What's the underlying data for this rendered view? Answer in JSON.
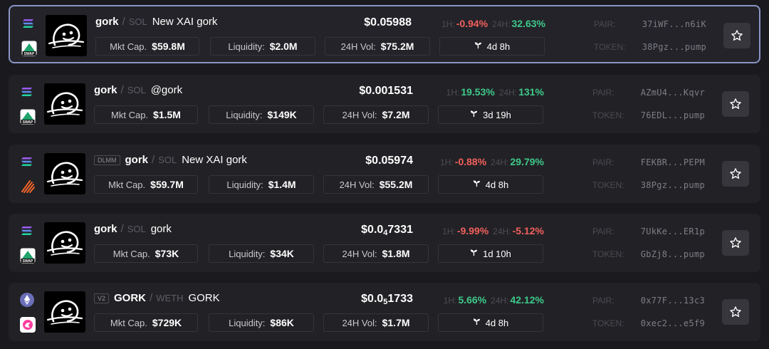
{
  "rows": [
    {
      "symbol": "gork",
      "base": "SOL",
      "name": "New XAI gork",
      "tag": "",
      "chain": "solana",
      "dex": "raydium-swap",
      "dex_label": "SWAP",
      "price": "$0.05988",
      "price_zero_count": "",
      "price_sig": "",
      "h1": "-0.94%",
      "h1_dir": "neg",
      "h24": "32.63%",
      "h24_dir": "pos",
      "mkt_cap": "$59.8M",
      "liquidity": "$2.0M",
      "vol": "$75.2M",
      "age": "4d 8h",
      "pair": "37iWF...n6iK",
      "token": "38Pgz...pump",
      "selected": true
    },
    {
      "symbol": "gork",
      "base": "SOL",
      "name": "@gork",
      "tag": "",
      "chain": "solana",
      "dex": "raydium-swap",
      "dex_label": "SWAP",
      "price": "$0.001531",
      "price_zero_count": "",
      "price_sig": "",
      "h1": "19.53%",
      "h1_dir": "pos",
      "h24": "131%",
      "h24_dir": "pos",
      "mkt_cap": "$1.5M",
      "liquidity": "$149K",
      "vol": "$7.2M",
      "age": "3d 19h",
      "pair": "AZmU4...Kqvr",
      "token": "76EDL...pump",
      "selected": false
    },
    {
      "symbol": "gork",
      "base": "SOL",
      "name": "New XAI gork",
      "tag": "DLMM",
      "chain": "solana",
      "dex": "meteora",
      "dex_label": "",
      "price": "$0.05974",
      "price_zero_count": "",
      "price_sig": "",
      "h1": "-0.88%",
      "h1_dir": "neg",
      "h24": "29.79%",
      "h24_dir": "pos",
      "mkt_cap": "$59.7M",
      "liquidity": "$1.4M",
      "vol": "$55.2M",
      "age": "4d 8h",
      "pair": "FEKBR...PEPM",
      "token": "38Pgz...pump",
      "selected": false
    },
    {
      "symbol": "gork",
      "base": "SOL",
      "name": "gork",
      "tag": "",
      "chain": "solana",
      "dex": "raydium-swap",
      "dex_label": "SWAP",
      "price": "$0.0",
      "price_zero_count": "4",
      "price_sig": "7331",
      "h1": "-9.99%",
      "h1_dir": "neg",
      "h24": "-5.12%",
      "h24_dir": "neg",
      "mkt_cap": "$73K",
      "liquidity": "$34K",
      "vol": "$1.8M",
      "age": "1d 10h",
      "pair": "7UkKe...ER1p",
      "token": "GbZj8...pump",
      "selected": false
    },
    {
      "symbol": "GORK",
      "base": "WETH",
      "name": "GORK",
      "tag": "V2",
      "chain": "ethereum",
      "dex": "uniswap",
      "dex_label": "",
      "price": "$0.0",
      "price_zero_count": "5",
      "price_sig": "1733",
      "h1": "5.66%",
      "h1_dir": "pos",
      "h24": "42.12%",
      "h24_dir": "pos",
      "mkt_cap": "$729K",
      "liquidity": "$86K",
      "vol": "$1.7M",
      "age": "4d 8h",
      "pair": "0x77F...13c3",
      "token": "0xec2...e5f9",
      "selected": false
    }
  ],
  "labels": {
    "mkt_cap": "Mkt Cap.",
    "liquidity": "Liquidity:",
    "vol": "24H Vol:",
    "h1": "1H:",
    "h24": "24H:",
    "pair": "PAIR:",
    "token": "TOKEN:",
    "slash": "/"
  },
  "colors": {
    "card_bg": "#222226",
    "selected_border": "#8a94c6",
    "positive": "#3ec98a",
    "negative": "#f25f5c",
    "muted": "#4c4c53",
    "fav_bg": "#36363c"
  }
}
